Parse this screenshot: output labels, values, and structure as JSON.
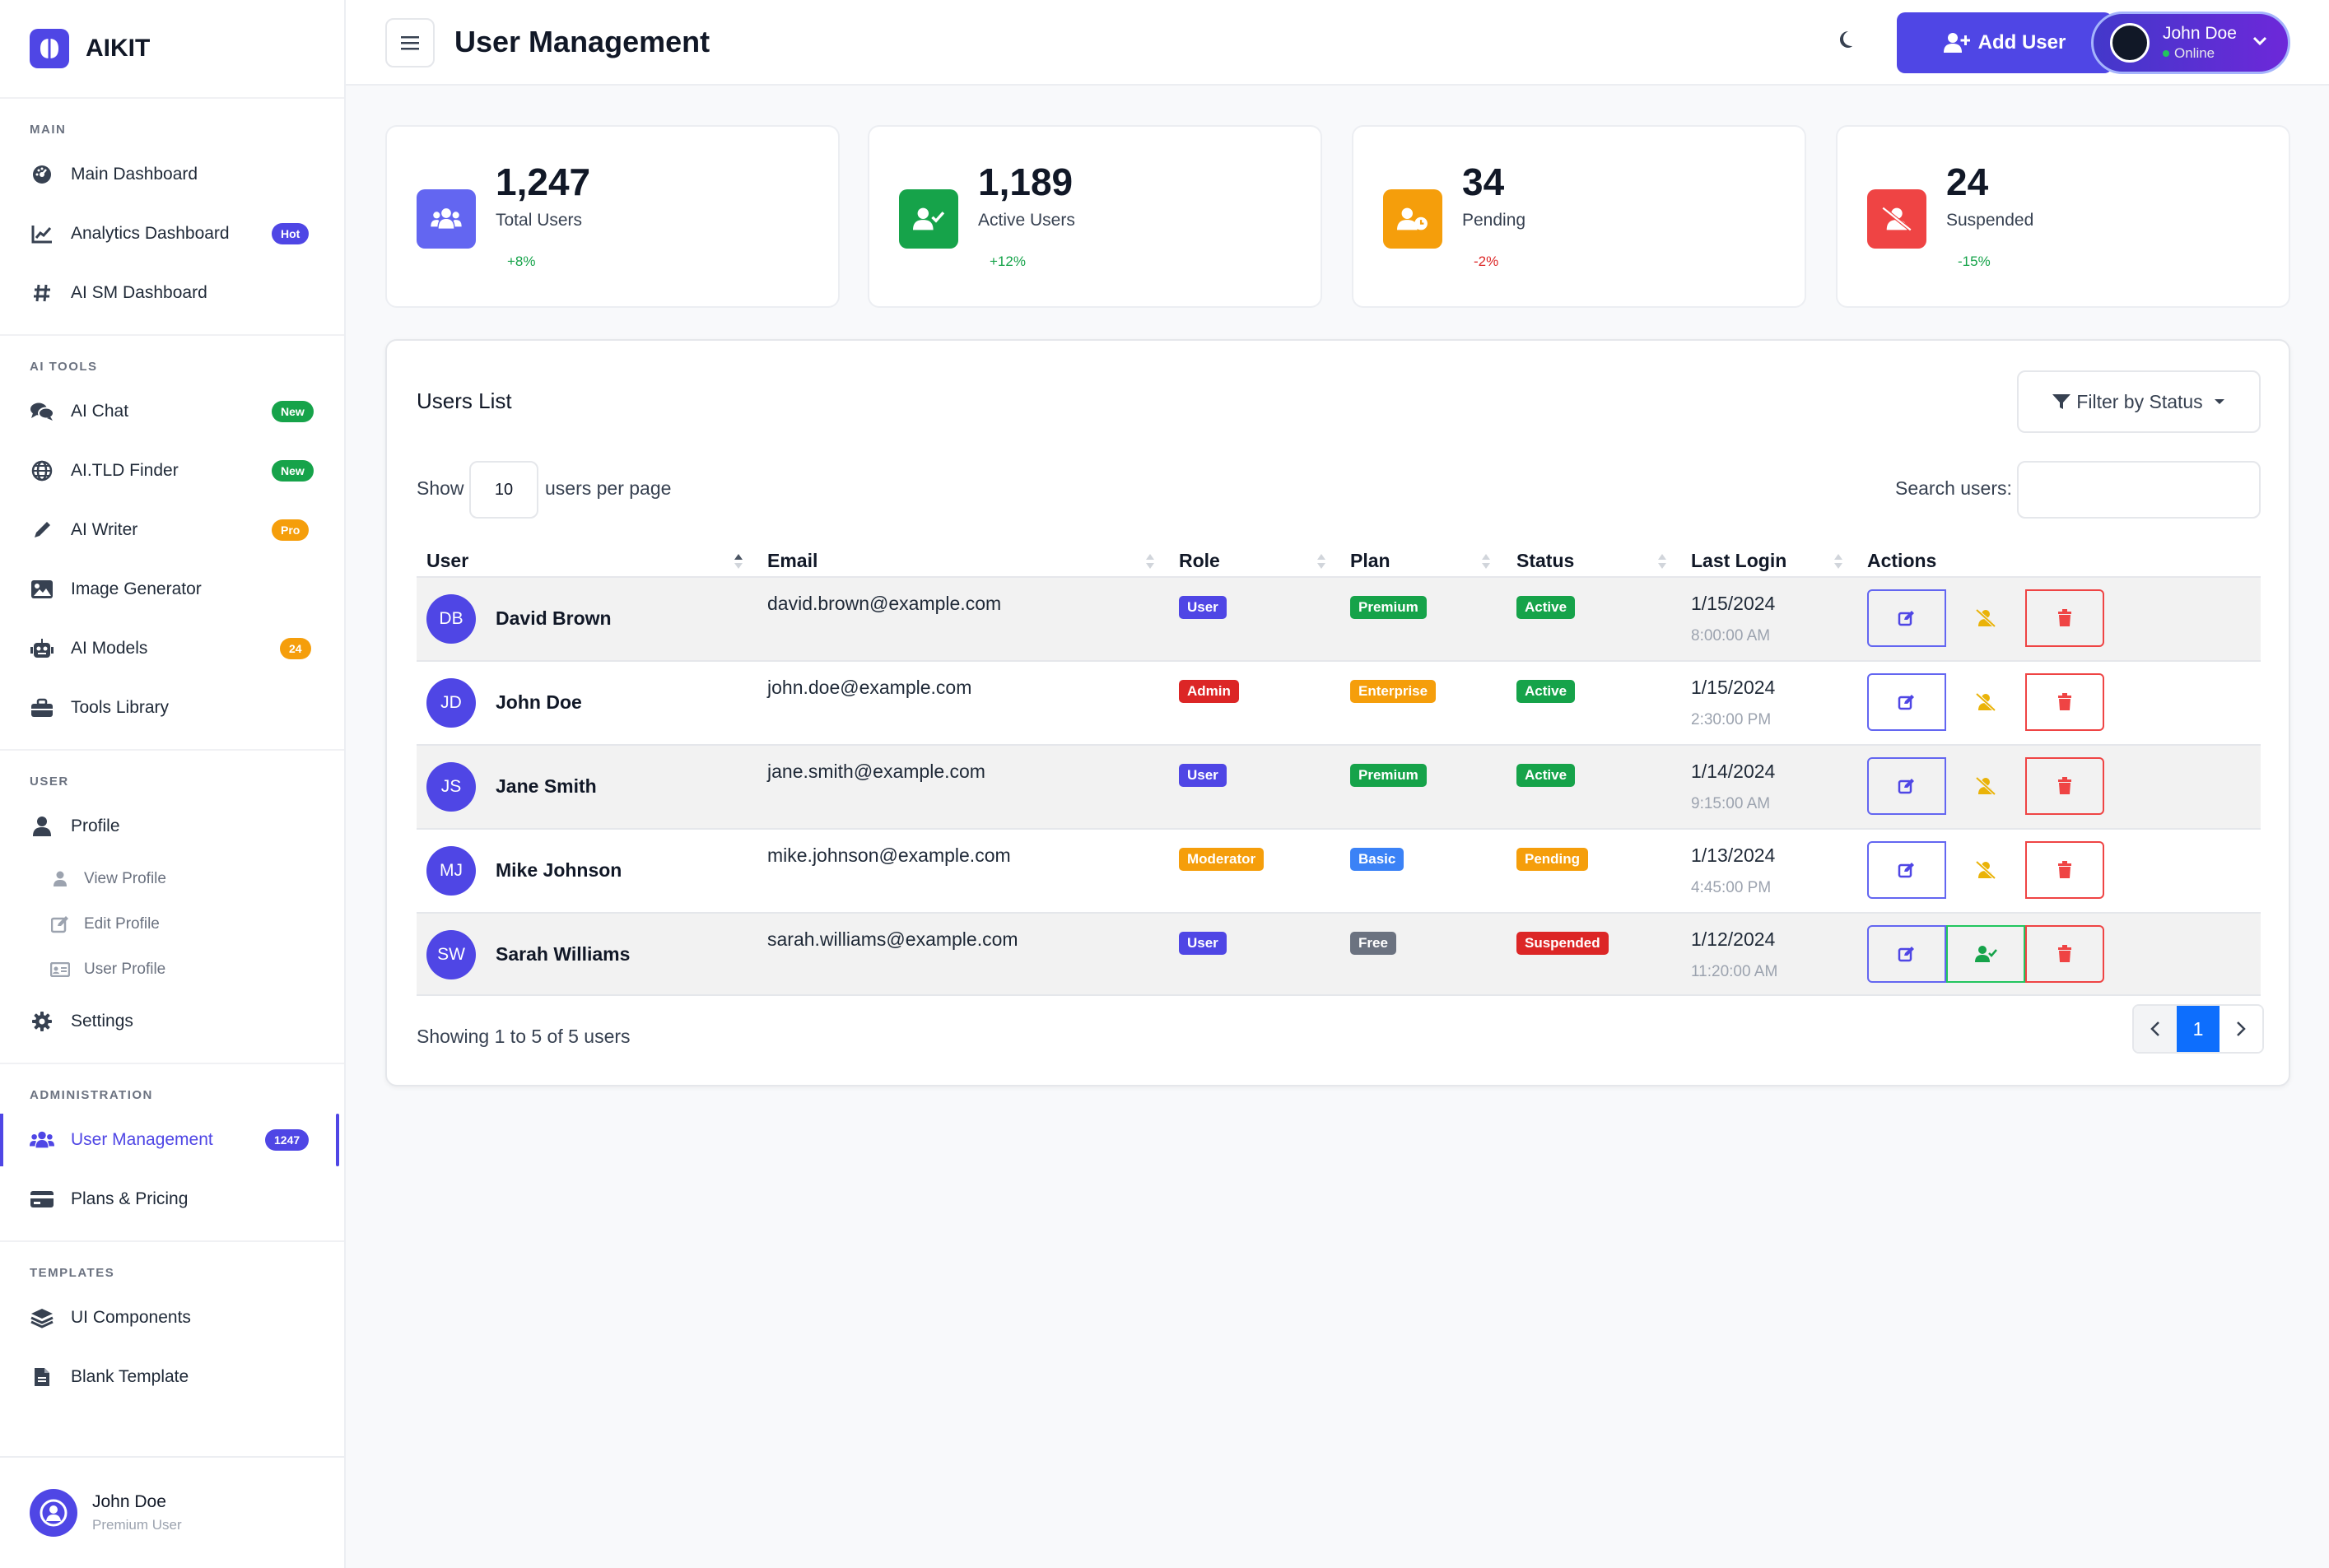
{
  "brand": {
    "name": "AIKIT"
  },
  "sidebar": {
    "sections": [
      {
        "title": "MAIN",
        "items": [
          {
            "label": "Main Dashboard",
            "icon": "gauge-icon"
          },
          {
            "label": "Analytics Dashboard",
            "icon": "chart-line-icon",
            "badge": "Hot"
          },
          {
            "label": "AI SM Dashboard",
            "icon": "hashtag-icon"
          }
        ]
      },
      {
        "title": "AI TOOLS",
        "items": [
          {
            "label": "AI Chat",
            "icon": "comments-icon",
            "badge": "New"
          },
          {
            "label": "AI.TLD Finder",
            "icon": "globe-icon",
            "badge": "New"
          },
          {
            "label": "AI Writer",
            "icon": "pen-icon",
            "badge": "Pro"
          },
          {
            "label": "Image Generator",
            "icon": "image-icon"
          },
          {
            "label": "AI Models",
            "icon": "robot-icon",
            "badge": "24"
          },
          {
            "label": "Tools Library",
            "icon": "toolbox-icon"
          }
        ]
      },
      {
        "title": "USER",
        "items": [
          {
            "label": "Profile",
            "icon": "user-icon"
          },
          {
            "label": "View Profile",
            "icon": "user-small-icon"
          },
          {
            "label": "Edit Profile",
            "icon": "edit-icon"
          },
          {
            "label": "User Profile",
            "icon": "id-card-icon"
          },
          {
            "label": "Settings",
            "icon": "gear-icon"
          }
        ]
      },
      {
        "title": "ADMINISTRATION",
        "items": [
          {
            "label": "User Management",
            "icon": "users-icon",
            "badge": "1247"
          },
          {
            "label": "Plans & Pricing",
            "icon": "credit-card-icon"
          }
        ]
      },
      {
        "title": "TEMPLATES",
        "items": [
          {
            "label": "UI Components",
            "icon": "layers-icon"
          },
          {
            "label": "Blank Template",
            "icon": "file-icon"
          }
        ]
      }
    ],
    "footer": {
      "name": "John Doe",
      "role": "Premium User"
    }
  },
  "header": {
    "title": "User Management",
    "add_user": "Add User",
    "user_name": "John Doe",
    "user_status": "Online"
  },
  "stats": [
    {
      "value": "1,247",
      "label": "Total Users",
      "change": "+8%",
      "color": "#6366f1"
    },
    {
      "value": "1,189",
      "label": "Active Users",
      "change": "+12%",
      "color": "#16a34a"
    },
    {
      "value": "34",
      "label": "Pending",
      "change": "-2%",
      "color": "#f59e0b"
    },
    {
      "value": "24",
      "label": "Suspended",
      "change": "-15%",
      "color": "#ef4444"
    }
  ],
  "users_list": {
    "title": "Users List",
    "filter": "Filter by Status",
    "show": "Show",
    "per_page_value": "10",
    "per_page": "users per page",
    "search_label": "Search users:",
    "columns": [
      "User",
      "Email",
      "Role",
      "Plan",
      "Status",
      "Last Login",
      "Actions"
    ],
    "rows": [
      {
        "initials": "DB",
        "name": "David Brown",
        "email": "david.brown@example.com",
        "role": "User",
        "plan": "Premium",
        "status": "Active",
        "date": "1/15/2024",
        "time": "8:00:00 AM"
      },
      {
        "initials": "JD",
        "name": "John Doe",
        "email": "john.doe@example.com",
        "role": "Admin",
        "plan": "Enterprise",
        "status": "Active",
        "date": "1/15/2024",
        "time": "2:30:00 PM"
      },
      {
        "initials": "JS",
        "name": "Jane Smith",
        "email": "jane.smith@example.com",
        "role": "User",
        "plan": "Premium",
        "status": "Active",
        "date": "1/14/2024",
        "time": "9:15:00 AM"
      },
      {
        "initials": "MJ",
        "name": "Mike Johnson",
        "email": "mike.johnson@example.com",
        "role": "Moderator",
        "plan": "Basic",
        "status": "Pending",
        "date": "1/13/2024",
        "time": "4:45:00 PM"
      },
      {
        "initials": "SW",
        "name": "Sarah Williams",
        "email": "sarah.williams@example.com",
        "role": "User",
        "plan": "Free",
        "status": "Suspended",
        "date": "1/12/2024",
        "time": "11:20:00 AM"
      }
    ],
    "showing": "Showing 1 to 5 of 5 users",
    "current_page": "1"
  },
  "colors": {
    "accent": "#4f46e5",
    "role_user": "#4f46e5",
    "role_admin": "#dc2626",
    "role_moderator": "#f59e0b",
    "plan_premium": "#16a34a",
    "plan_enterprise": "#f59e0b",
    "plan_basic": "#3b82f6",
    "plan_free": "#6b7280",
    "status_active": "#16a34a",
    "status_pending": "#f59e0b",
    "status_suspended": "#dc2626"
  }
}
